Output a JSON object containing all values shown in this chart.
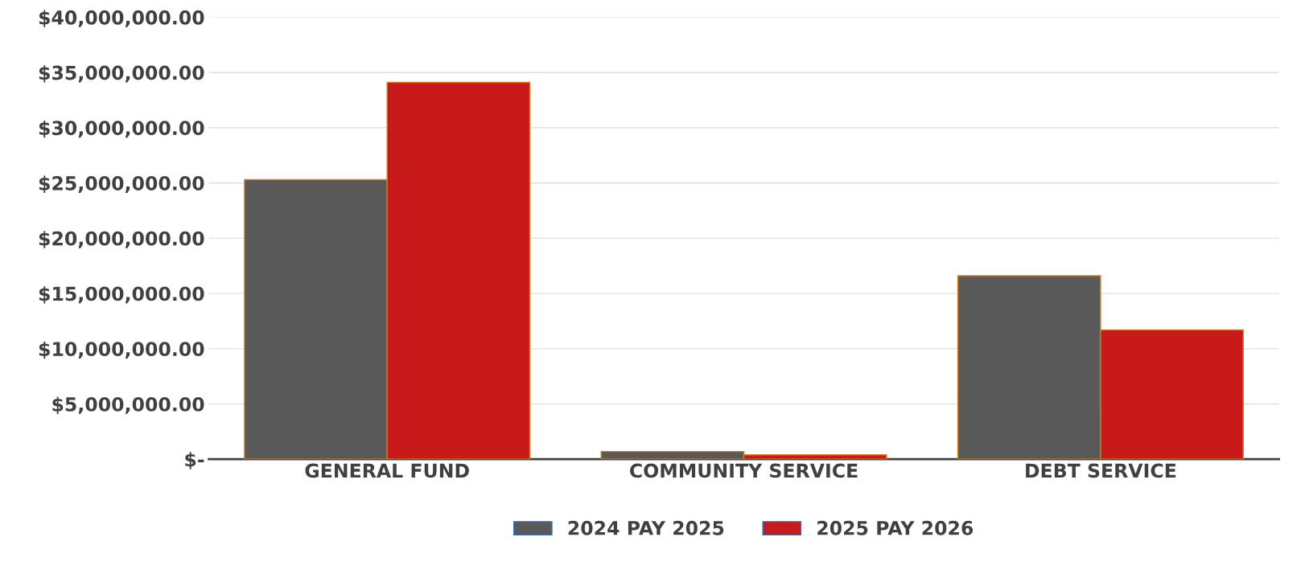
{
  "chart_data": {
    "type": "bar",
    "categories": [
      "GENERAL FUND",
      "COMMUNITY SERVICE",
      "DEBT SERVICE"
    ],
    "series": [
      {
        "name": "2024 PAY 2025",
        "color": "#595959",
        "values": [
          25300000,
          700000,
          16600000
        ]
      },
      {
        "name": "2025 PAY 2026",
        "color": "#c81a1a",
        "values": [
          34100000,
          400000,
          11700000
        ]
      }
    ],
    "ylim": [
      0,
      40000000
    ],
    "yticks": [
      {
        "value": 0,
        "label": "$-"
      },
      {
        "value": 5000000,
        "label": "$5,000,000.00"
      },
      {
        "value": 10000000,
        "label": "$10,000,000.00"
      },
      {
        "value": 15000000,
        "label": "$15,000,000.00"
      },
      {
        "value": 20000000,
        "label": "$20,000,000.00"
      },
      {
        "value": 25000000,
        "label": "$25,000,000.00"
      },
      {
        "value": 30000000,
        "label": "$30,000,000.00"
      },
      {
        "value": 35000000,
        "label": "$35,000,000.00"
      },
      {
        "value": 40000000,
        "label": "$40,000,000.00"
      }
    ],
    "grid": "y",
    "legend": "bottom"
  }
}
